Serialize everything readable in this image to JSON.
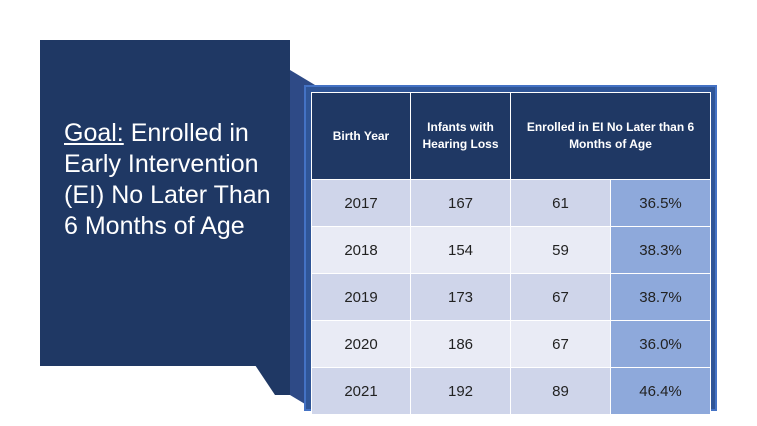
{
  "goal": {
    "label": "Goal:",
    "text": " Enrolled in Early Intervention (EI) No Later Than 6 Months of Age"
  },
  "table": {
    "headers": [
      "Birth Year",
      "Infants with Hearing Loss",
      "Enrolled in EI No Later than 6 Months of Age"
    ],
    "rows": [
      {
        "year": "2017",
        "infants": "167",
        "enrolled": "61",
        "percent": "36.5%"
      },
      {
        "year": "2018",
        "infants": "154",
        "enrolled": "59",
        "percent": "38.3%"
      },
      {
        "year": "2019",
        "infants": "173",
        "enrolled": "67",
        "percent": "38.7%"
      },
      {
        "year": "2020",
        "infants": "186",
        "enrolled": "67",
        "percent": "36.0%"
      },
      {
        "year": "2021",
        "infants": "192",
        "enrolled": "89",
        "percent": "46.4%"
      }
    ]
  },
  "colors": {
    "panel": "#1f3864",
    "frame": "#2f5597",
    "row_dark": "#cfd5ea",
    "row_light": "#e9ebf5",
    "percent_cell": "#8ea9db"
  }
}
